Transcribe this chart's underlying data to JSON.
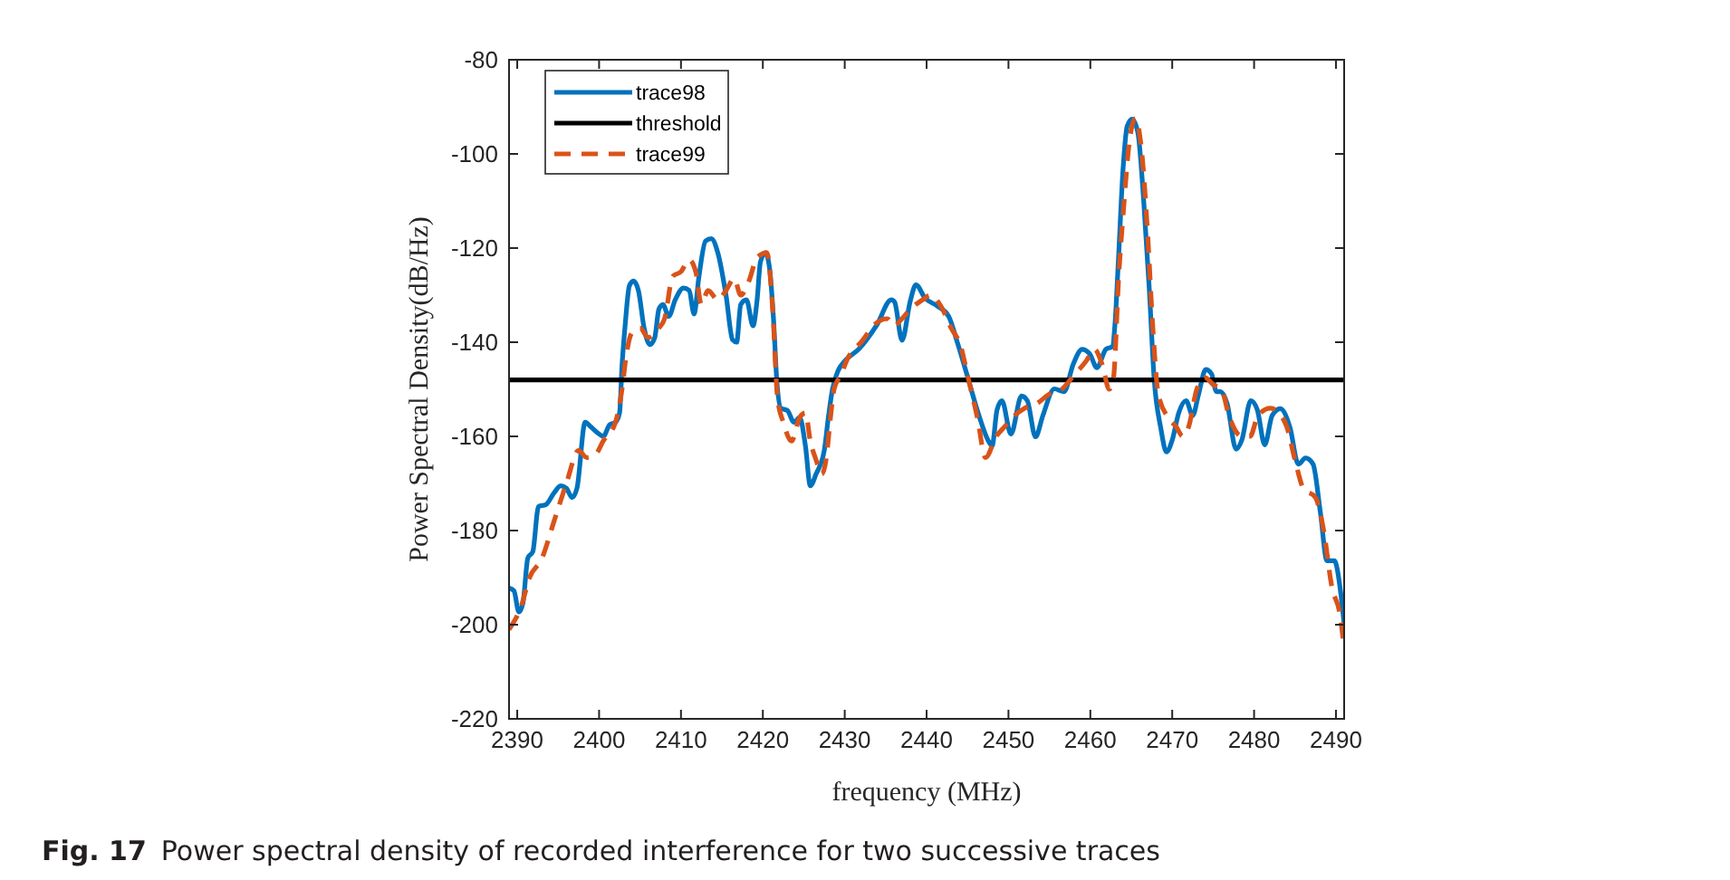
{
  "chart_data": {
    "type": "line",
    "xlabel": "frequency (MHz)",
    "ylabel": "Power Spectral Density(dB/Hz)",
    "xlim": [
      2389,
      2491
    ],
    "ylim": [
      -220,
      -80
    ],
    "xticks": [
      2390,
      2400,
      2410,
      2420,
      2430,
      2440,
      2450,
      2460,
      2470,
      2480,
      2490
    ],
    "yticks": [
      -220,
      -200,
      -180,
      -160,
      -140,
      -120,
      -100,
      -80
    ],
    "grid": false,
    "legend": "top left",
    "marker": "none",
    "annotations": [
      "Fig. 17",
      "Power spectral density of recorded interference for two successive traces"
    ],
    "series": [
      {
        "name": "trace98",
        "color": "#0072bd",
        "line_style": "solid",
        "x": [
          2389,
          2389.6,
          2390.2,
          2390.7,
          2391.3,
          2391.9,
          2392.6,
          2393.5,
          2394.5,
          2395.3,
          2396,
          2396.7,
          2397.3,
          2398.3,
          2399,
          2400,
          2400.5,
          2401.3,
          2402,
          2402.5,
          2402.8,
          2403.2,
          2403.7,
          2404.2,
          2404.8,
          2405.5,
          2406.2,
          2406.8,
          2407.3,
          2407.8,
          2408.5,
          2409.3,
          2410.3,
          2411,
          2411.6,
          2412.2,
          2413,
          2413.7,
          2414.5,
          2415.5,
          2416.3,
          2416.8,
          2417.3,
          2418,
          2418.8,
          2419.3,
          2419.7,
          2420.3,
          2420.8,
          2421.3,
          2421.7,
          2422.2,
          2423,
          2423.8,
          2424.5,
          2425.2,
          2425.8,
          2426.5,
          2427.5,
          2428,
          2428.5,
          2429.2,
          2430,
          2431.7,
          2433.9,
          2435.7,
          2436.1,
          2437,
          2438,
          2438.7,
          2439.8,
          2441.3,
          2442.7,
          2443.8,
          2445,
          2446.4,
          2447.5,
          2448,
          2448.6,
          2449.2,
          2450.3,
          2451.6,
          2452.3,
          2453.3,
          2454.2,
          2455.6,
          2456.8,
          2457.9,
          2459,
          2459.9,
          2460.8,
          2461.9,
          2462.7,
          2463,
          2463.4,
          2464,
          2464.5,
          2465.1,
          2465.8,
          2466.5,
          2467.2,
          2467.8,
          2468.6,
          2469.3,
          2470,
          2470.8,
          2471.7,
          2472.5,
          2473.2,
          2474.1,
          2474.8,
          2475.4,
          2475.9,
          2476.7,
          2477.8,
          2478.5,
          2479.6,
          2480.4,
          2481.3,
          2482.2,
          2483.2,
          2484.4,
          2485.4,
          2486.3,
          2487.2,
          2488.1,
          2488.9,
          2489.8,
          2490.6,
          2491
        ],
        "values": [
          -192.2,
          -192.8,
          -197.3,
          -195.4,
          -185.8,
          -184.5,
          -174.9,
          -174.5,
          -172,
          -170.5,
          -171,
          -173,
          -171,
          -157,
          -158,
          -159.5,
          -160,
          -157.5,
          -157,
          -155,
          -145,
          -136,
          -128,
          -127,
          -129,
          -137,
          -140.5,
          -139,
          -133,
          -132,
          -134.5,
          -131,
          -128.5,
          -129,
          -134,
          -126,
          -118.5,
          -118,
          -121,
          -130,
          -139.5,
          -140,
          -132,
          -131,
          -136.5,
          -131,
          -123,
          -121,
          -124,
          -135,
          -148,
          -154,
          -154.5,
          -157,
          -156,
          -162,
          -170.5,
          -168,
          -163,
          -156,
          -150,
          -146,
          -144,
          -141.5,
          -136.4,
          -131,
          -131.5,
          -139.6,
          -131.3,
          -127.8,
          -130.6,
          -132.3,
          -134.5,
          -140.3,
          -147.3,
          -155.6,
          -160.8,
          -162,
          -154.4,
          -152.4,
          -159.5,
          -151.4,
          -152.4,
          -160.1,
          -155.6,
          -149.9,
          -150.5,
          -144.7,
          -141.5,
          -142.4,
          -145.4,
          -141.5,
          -140.9,
          -136.4,
          -123.6,
          -103.1,
          -94.1,
          -92.6,
          -95.4,
          -109.5,
          -128.7,
          -147.9,
          -158.2,
          -163.3,
          -160.8,
          -155,
          -152.4,
          -155.6,
          -151.2,
          -145.8,
          -146.7,
          -150.5,
          -150.5,
          -153,
          -162.7,
          -160.8,
          -152.4,
          -154.4,
          -161.8,
          -155.6,
          -154.1,
          -158.2,
          -165.9,
          -164.6,
          -165.9,
          -176.2,
          -186.4,
          -186.4,
          -193.5,
          -199.9
        ]
      },
      {
        "name": "threshold",
        "color": "#000000",
        "line_style": "solid",
        "x": [
          2389,
          2491
        ],
        "values": [
          -148,
          -148
        ]
      },
      {
        "name": "trace99",
        "color": "#d95319",
        "line_style": "dashed",
        "x": [
          2389,
          2390.5,
          2391.5,
          2393,
          2394.5,
          2396,
          2397.5,
          2398.5,
          2399.5,
          2400.5,
          2402,
          2402.8,
          2403.3,
          2404,
          2405,
          2406,
          2407.3,
          2408,
          2409,
          2410,
          2411,
          2411.8,
          2412.5,
          2413.3,
          2414.5,
          2415.5,
          2416.5,
          2417.3,
          2418.3,
          2419.3,
          2420.5,
          2421.2,
          2421.8,
          2422.5,
          2423.5,
          2424.5,
          2425.2,
          2425.8,
          2426.5,
          2427.2,
          2427.8,
          2428.2,
          2428.7,
          2429.5,
          2430.5,
          2432,
          2433.8,
          2435.2,
          2436,
          2437,
          2438,
          2439.5,
          2440.5,
          2441.8,
          2443,
          2444.2,
          2445,
          2446.2,
          2447.2,
          2448.5,
          2449.5,
          2450.5,
          2452,
          2453.5,
          2455,
          2456.5,
          2458,
          2459.5,
          2460.5,
          2461.5,
          2462.3,
          2462.8,
          2463.5,
          2464,
          2464.8,
          2465.5,
          2466.3,
          2467,
          2467.6,
          2468.3,
          2469.5,
          2470.5,
          2471.3,
          2472,
          2473,
          2474,
          2475,
          2476,
          2477,
          2478.5,
          2479.5,
          2480.5,
          2482,
          2483,
          2484,
          2485,
          2486,
          2487.5,
          2488.5,
          2489.5,
          2490.5,
          2491
        ],
        "values": [
          -201,
          -196,
          -190,
          -186,
          -178,
          -170,
          -163,
          -164.5,
          -164,
          -161,
          -157,
          -150,
          -143,
          -138,
          -137,
          -139,
          -137,
          -135,
          -126,
          -125,
          -122.5,
          -125,
          -132,
          -129,
          -131,
          -129,
          -126.5,
          -130,
          -127,
          -122,
          -121,
          -133,
          -152,
          -157,
          -161,
          -156,
          -155,
          -161,
          -165,
          -168,
          -164,
          -157,
          -150,
          -147,
          -143,
          -140,
          -136,
          -135,
          -136.5,
          -135,
          -133,
          -131,
          -130,
          -132.5,
          -137,
          -141,
          -147,
          -156,
          -164.5,
          -160,
          -158,
          -156,
          -154,
          -153,
          -151,
          -150,
          -147,
          -144,
          -141.5,
          -145,
          -150,
          -148,
          -125,
          -113,
          -97,
          -92.5,
          -100,
          -117,
          -136,
          -151,
          -156,
          -158,
          -160,
          -158,
          -150,
          -147.5,
          -149,
          -150,
          -156,
          -160,
          -160,
          -155.5,
          -154,
          -155,
          -158,
          -165,
          -171,
          -173,
          -180,
          -192,
          -198,
          -205
        ]
      }
    ]
  }
}
